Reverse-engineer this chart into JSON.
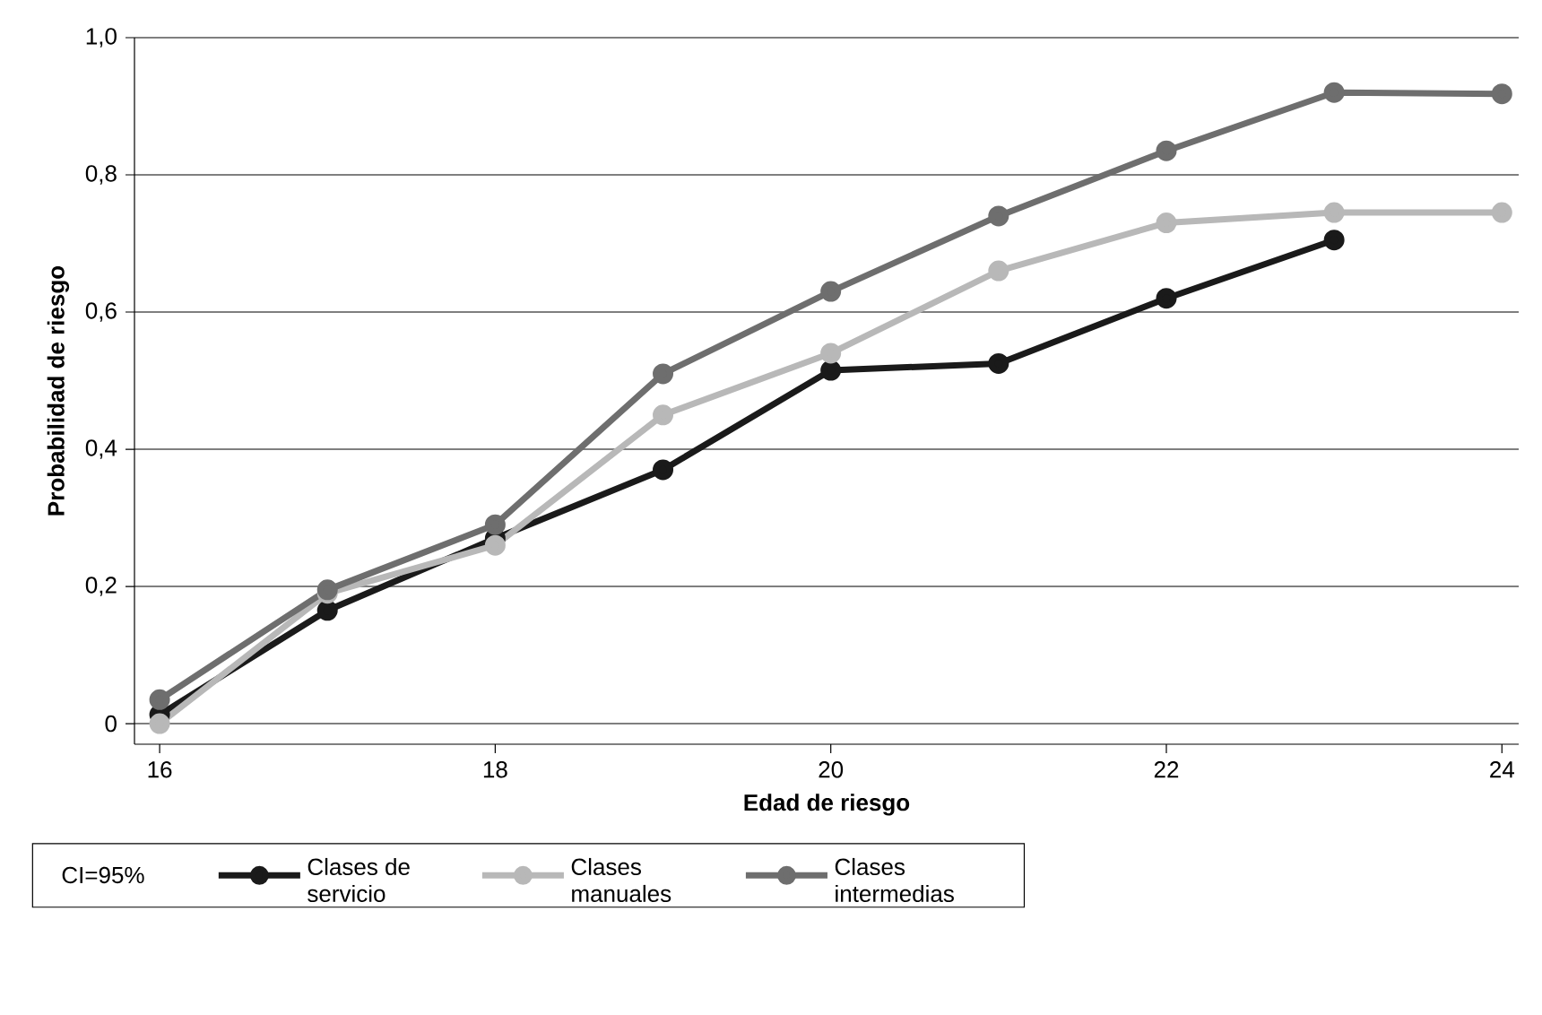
{
  "chart_data": {
    "type": "line",
    "xlabel": "Edad de riesgo",
    "ylabel": "Probabilidad de riesgo",
    "x": [
      16,
      17,
      18,
      19,
      20,
      21,
      22,
      23,
      24
    ],
    "series": [
      {
        "name": "Clases de servicio",
        "color": "#1a1a1a",
        "values": [
          0.013,
          0.165,
          0.27,
          0.37,
          0.515,
          0.525,
          0.62,
          0.705,
          null
        ]
      },
      {
        "name": "Clases manuales",
        "color": "#b8b8b8",
        "values": [
          0.0,
          0.19,
          0.26,
          0.45,
          0.54,
          0.66,
          0.73,
          0.745,
          0.745
        ]
      },
      {
        "name": "Clases intermedias",
        "color": "#6e6e6e",
        "values": [
          0.035,
          0.195,
          0.29,
          0.51,
          0.63,
          0.74,
          0.835,
          0.92,
          0.918
        ]
      }
    ],
    "xlim": [
      15.85,
      24.1
    ],
    "ylim": [
      -0.03,
      1.0
    ],
    "xticks": [
      16,
      18,
      20,
      22,
      24
    ],
    "yticks": [
      {
        "value": 0,
        "label": "0"
      },
      {
        "value": 0.2,
        "label": "0,2"
      },
      {
        "value": 0.4,
        "label": "0,4"
      },
      {
        "value": 0.6,
        "label": "0,6"
      },
      {
        "value": 0.8,
        "label": "0,8"
      },
      {
        "value": 1.0,
        "label": "1,0"
      }
    ],
    "grid": "y",
    "legend": "bottom",
    "marker": "circle",
    "line_style": "solid",
    "annotations": [
      "CI=95%"
    ]
  }
}
